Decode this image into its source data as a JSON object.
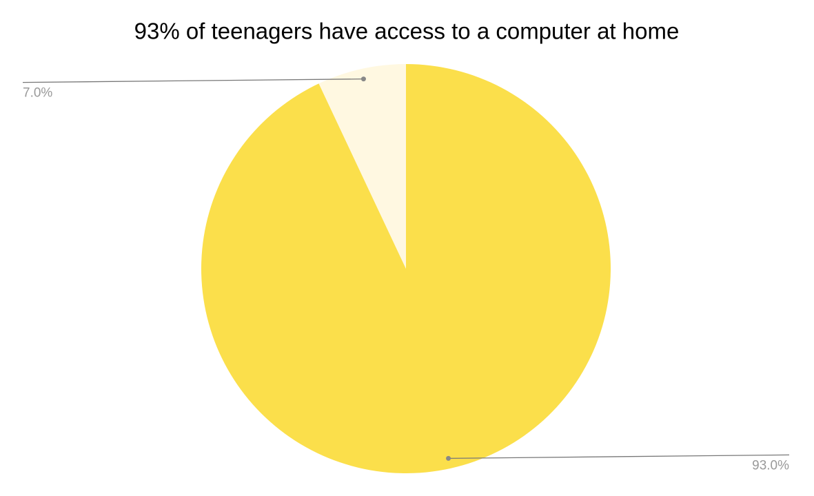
{
  "chart_data": {
    "type": "pie",
    "title": "93% of teenagers have access to a computer at home",
    "values": [
      93,
      7
    ],
    "value_labels": [
      "93.0%",
      "7.0%"
    ],
    "colors": [
      "#fbdf4b",
      "#fff8e1"
    ]
  }
}
